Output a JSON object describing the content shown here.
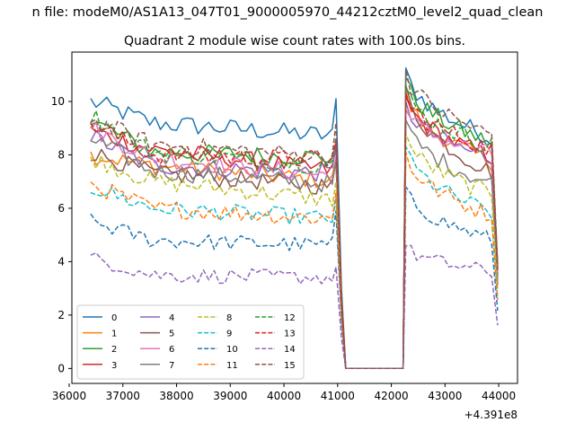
{
  "figure": {
    "suptitle": "n file: modeM0/AS1A13_047T01_9000005970_44212cztM0_level2_quad_clean"
  },
  "chart_data": {
    "type": "line",
    "title": "Quadrant 2 module wise count rates with 100.0s bins.",
    "xlabel": "",
    "ylabel": "",
    "x_offset_label": "+4.391e8",
    "xlim": [
      36050,
      44350
    ],
    "ylim": [
      -0.56,
      11.85
    ],
    "xticks": [
      36000,
      37000,
      38000,
      39000,
      40000,
      41000,
      42000,
      43000,
      44000
    ],
    "yticks": [
      0,
      2,
      4,
      6,
      8,
      10
    ],
    "grid": false,
    "legend": {
      "placement": "lower-left",
      "columns": 4
    },
    "gap": {
      "start": 41150,
      "end": 42220
    },
    "series": [
      {
        "name": "0",
        "color": "#1f77b4",
        "dash": "solid",
        "start": 10.0,
        "early": 9.2,
        "late": 8.7,
        "end_gap": 10.1,
        "peak": 11.25,
        "post_end": 8.6
      },
      {
        "name": "1",
        "color": "#ff7f0e",
        "dash": "solid",
        "start": 8.0,
        "early": 7.6,
        "late": 7.0,
        "end_gap": 7.9,
        "peak": 10.4,
        "post_end": 7.7
      },
      {
        "name": "2",
        "color": "#2ca02c",
        "dash": "solid",
        "start": 9.3,
        "early": 8.1,
        "late": 7.9,
        "end_gap": 8.4,
        "peak": 10.9,
        "post_end": 8.4
      },
      {
        "name": "3",
        "color": "#d62728",
        "dash": "solid",
        "start": 8.9,
        "early": 8.2,
        "late": 7.4,
        "end_gap": 8.2,
        "peak": 10.2,
        "post_end": 7.9
      },
      {
        "name": "4",
        "color": "#9467bd",
        "dash": "solid",
        "start": 8.7,
        "early": 7.6,
        "late": 7.3,
        "end_gap": 8.3,
        "peak": 10.0,
        "post_end": 7.8
      },
      {
        "name": "5",
        "color": "#8c564b",
        "dash": "solid",
        "start": 8.1,
        "early": 7.3,
        "late": 6.8,
        "end_gap": 7.7,
        "peak": 10.6,
        "post_end": 7.3
      },
      {
        "name": "6",
        "color": "#e377c2",
        "dash": "solid",
        "start": 9.0,
        "early": 7.9,
        "late": 7.2,
        "end_gap": 7.9,
        "peak": 9.7,
        "post_end": 8.0
      },
      {
        "name": "7",
        "color": "#7f7f7f",
        "dash": "solid",
        "start": 8.6,
        "early": 7.4,
        "late": 6.9,
        "end_gap": 7.8,
        "peak": 9.3,
        "post_end": 6.9
      },
      {
        "name": "8",
        "color": "#bcbd22",
        "dash": "dashed",
        "start": 7.9,
        "early": 7.0,
        "late": 6.3,
        "end_gap": 7.0,
        "peak": 8.8,
        "post_end": 6.5
      },
      {
        "name": "9",
        "color": "#17becf",
        "dash": "dashed",
        "start": 6.8,
        "early": 6.0,
        "late": 5.6,
        "end_gap": 6.4,
        "peak": 8.3,
        "post_end": 5.8
      },
      {
        "name": "10",
        "color": "#1f77b4",
        "dash": "dashed",
        "start": 5.5,
        "early": 4.8,
        "late": 4.6,
        "end_gap": 5.9,
        "peak": 6.8,
        "post_end": 4.8
      },
      {
        "name": "11",
        "color": "#ff7f0e",
        "dash": "dashed",
        "start": 6.9,
        "early": 6.0,
        "late": 5.6,
        "end_gap": 6.6,
        "peak": 8.1,
        "post_end": 5.7
      },
      {
        "name": "12",
        "color": "#2ca02c",
        "dash": "dashed",
        "start": 9.5,
        "early": 8.1,
        "late": 7.6,
        "end_gap": 8.6,
        "peak": 10.5,
        "post_end": 8.3
      },
      {
        "name": "13",
        "color": "#d62728",
        "dash": "dashed",
        "start": 9.2,
        "early": 8.0,
        "late": 7.8,
        "end_gap": 8.5,
        "peak": 10.3,
        "post_end": 8.2
      },
      {
        "name": "14",
        "color": "#9467bd",
        "dash": "dashed",
        "start": 4.15,
        "early": 3.5,
        "late": 3.4,
        "end_gap": 3.8,
        "peak": 4.6,
        "post_end": 3.6
      },
      {
        "name": "15",
        "color": "#8c564b",
        "dash": "dashed",
        "start": 9.3,
        "early": 8.4,
        "late": 7.9,
        "end_gap": 9.2,
        "peak": 11.2,
        "post_end": 8.7
      }
    ]
  }
}
